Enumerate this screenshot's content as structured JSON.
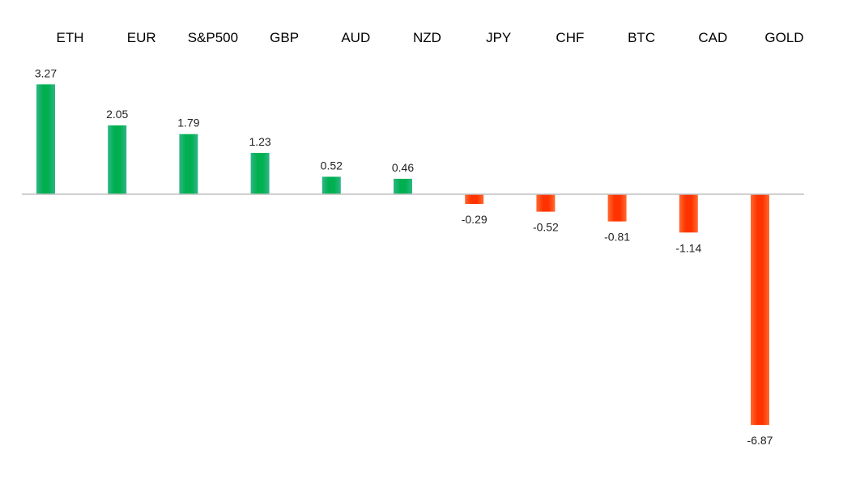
{
  "chart_data": {
    "type": "bar",
    "title": "",
    "xlabel": "",
    "ylabel": "",
    "categories": [
      "ETH",
      "EUR",
      "S&P500",
      "GBP",
      "AUD",
      "NZD",
      "JPY",
      "CHF",
      "BTC",
      "CAD",
      "GOLD"
    ],
    "values": [
      3.27,
      2.05,
      1.79,
      1.23,
      0.52,
      0.46,
      -0.29,
      -0.52,
      -0.81,
      -1.14,
      -6.87
    ],
    "ylim": [
      -7.3,
      3.6
    ],
    "grid": false,
    "legend": "none",
    "colors": {
      "positive_top": "#00b050",
      "positive_edge": "#39b08a",
      "negative_top": "#ff3300",
      "negative_edge": "#ff6a3a",
      "axis": "#c0c0c0"
    }
  }
}
